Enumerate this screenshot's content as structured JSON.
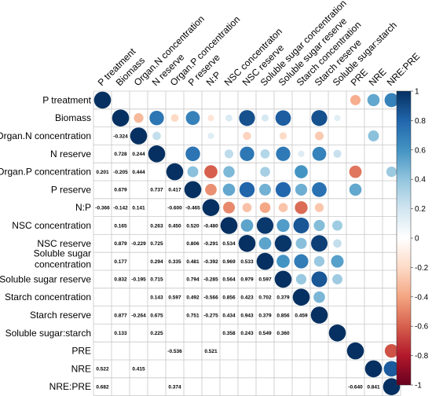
{
  "chart_data": {
    "type": "heatmap",
    "title": "",
    "variables": [
      "P treatment",
      "Biomass",
      "Organ.N concentration",
      "N reserve",
      "Organ.P concentration",
      "P reserve",
      "N:P",
      "NSC concentration",
      "NSC reserve",
      "Soluble sugar concentration",
      "Soluble sugar reserve",
      "Starch concentration",
      "Starch reserve",
      "Soluble sugar:starch",
      "PRE",
      "NRE",
      "NRE:PRE"
    ],
    "column_labels": [
      "P treatment",
      "Biomass",
      "Organ.N concentration",
      "N reserve",
      "Organ.P concentration",
      "P reserve",
      "N:P",
      "NSC concentraton",
      "NSC reserve",
      "Soluble sugar concentration",
      "Soluble sugar reserve",
      "Starch concentration",
      "Starch reserve",
      "Soluble sugar:starch",
      "PRE",
      "NRE",
      "NRE:PRE"
    ],
    "row_labels": [
      "P treatment",
      "Biomass",
      "Organ.N concentration",
      "N reserve",
      "Organ.P concentration",
      "P reserve",
      "N:P",
      "NSC concentration",
      "NSC reserve",
      [
        "Soluble sugar",
        "concentration"
      ],
      "Soluble sugar reserve",
      "Starch concentration",
      "Starch reserve",
      "Soluble sugar:starch",
      "PRE",
      "NRE",
      "NRE:PRE"
    ],
    "lower_labels": [
      [
        4,
        0,
        "0.201"
      ],
      [
        6,
        0,
        "-0.366"
      ],
      [
        15,
        0,
        "0.522"
      ],
      [
        16,
        0,
        "0.682"
      ],
      [
        2,
        1,
        "-0.324"
      ],
      [
        3,
        1,
        "0.728"
      ],
      [
        4,
        1,
        "-0.205"
      ],
      [
        5,
        1,
        "0.679"
      ],
      [
        6,
        1,
        "-0.142"
      ],
      [
        7,
        1,
        "0.165"
      ],
      [
        8,
        1,
        "0.879"
      ],
      [
        9,
        1,
        "0.177"
      ],
      [
        10,
        1,
        "0.832"
      ],
      [
        12,
        1,
        "0.877"
      ],
      [
        13,
        1,
        "0.133"
      ],
      [
        3,
        2,
        "0.244"
      ],
      [
        4,
        2,
        "0.444"
      ],
      [
        6,
        2,
        "0.141"
      ],
      [
        8,
        2,
        "-0.229"
      ],
      [
        10,
        2,
        "-0.195"
      ],
      [
        12,
        2,
        "-0.264"
      ],
      [
        15,
        2,
        "0.415"
      ],
      [
        5,
        3,
        "0.737"
      ],
      [
        7,
        3,
        "0.263"
      ],
      [
        8,
        3,
        "0.725"
      ],
      [
        9,
        3,
        "0.294"
      ],
      [
        10,
        3,
        "0.715"
      ],
      [
        11,
        3,
        "0.143"
      ],
      [
        12,
        3,
        "0.675"
      ],
      [
        13,
        3,
        "0.225"
      ],
      [
        5,
        4,
        "0.417"
      ],
      [
        6,
        4,
        "-0.600"
      ],
      [
        7,
        4,
        "0.450"
      ],
      [
        9,
        4,
        "0.335"
      ],
      [
        11,
        4,
        "0.597"
      ],
      [
        14,
        4,
        "-0.536"
      ],
      [
        16,
        4,
        "0.374"
      ],
      [
        6,
        5,
        "-0.465"
      ],
      [
        7,
        5,
        "0.520"
      ],
      [
        8,
        5,
        "0.806"
      ],
      [
        9,
        5,
        "0.481"
      ],
      [
        10,
        5,
        "0.794"
      ],
      [
        11,
        5,
        "0.492"
      ],
      [
        12,
        5,
        "0.751"
      ],
      [
        7,
        6,
        "-0.480"
      ],
      [
        8,
        6,
        "-0.291"
      ],
      [
        9,
        6,
        "-0.392"
      ],
      [
        10,
        6,
        "-0.285"
      ],
      [
        11,
        6,
        "-0.566"
      ],
      [
        12,
        6,
        "-0.275"
      ],
      [
        14,
        6,
        "0.521"
      ],
      [
        8,
        7,
        "0.534"
      ],
      [
        9,
        7,
        "0.969"
      ],
      [
        10,
        7,
        "0.564"
      ],
      [
        11,
        7,
        "0.856"
      ],
      [
        12,
        7,
        "0.434"
      ],
      [
        13,
        7,
        "0.358"
      ],
      [
        9,
        8,
        "0.533"
      ],
      [
        10,
        8,
        "0.979"
      ],
      [
        11,
        8,
        "0.423"
      ],
      [
        12,
        8,
        "0.943"
      ],
      [
        13,
        8,
        "0.243"
      ],
      [
        10,
        9,
        "0.597"
      ],
      [
        11,
        9,
        "0.702"
      ],
      [
        12,
        9,
        "0.379"
      ],
      [
        13,
        9,
        "0.549"
      ],
      [
        11,
        10,
        "0.379"
      ],
      [
        12,
        10,
        "0.856"
      ],
      [
        13,
        10,
        "0.360"
      ],
      [
        12,
        11,
        "0.459"
      ],
      [
        16,
        14,
        "-0.640"
      ],
      [
        16,
        15,
        "0.841"
      ]
    ],
    "upper_circles": [
      [
        0,
        0,
        1.0
      ],
      [
        0,
        14,
        -0.366
      ],
      [
        0,
        15,
        0.522
      ],
      [
        0,
        16,
        0.682
      ],
      [
        1,
        1,
        1.0
      ],
      [
        1,
        2,
        -0.324
      ],
      [
        1,
        3,
        0.728
      ],
      [
        1,
        4,
        -0.205
      ],
      [
        1,
        5,
        0.679
      ],
      [
        1,
        6,
        -0.142
      ],
      [
        1,
        7,
        0.165
      ],
      [
        1,
        8,
        0.879
      ],
      [
        1,
        9,
        0.177
      ],
      [
        1,
        10,
        0.832
      ],
      [
        1,
        12,
        0.877
      ],
      [
        1,
        13,
        0.133
      ],
      [
        2,
        2,
        1.0
      ],
      [
        2,
        3,
        0.244
      ],
      [
        2,
        6,
        0.141
      ],
      [
        2,
        8,
        -0.229
      ],
      [
        2,
        10,
        -0.195
      ],
      [
        2,
        12,
        -0.264
      ],
      [
        2,
        15,
        0.415
      ],
      [
        3,
        3,
        1.0
      ],
      [
        3,
        5,
        0.737
      ],
      [
        3,
        7,
        0.263
      ],
      [
        3,
        8,
        0.725
      ],
      [
        3,
        9,
        0.294
      ],
      [
        3,
        10,
        0.715
      ],
      [
        3,
        11,
        0.143
      ],
      [
        3,
        12,
        0.675
      ],
      [
        3,
        13,
        0.225
      ],
      [
        4,
        4,
        1.0
      ],
      [
        4,
        5,
        0.417
      ],
      [
        4,
        6,
        -0.6
      ],
      [
        4,
        7,
        0.45
      ],
      [
        4,
        9,
        0.335
      ],
      [
        4,
        11,
        0.597
      ],
      [
        4,
        14,
        -0.536
      ],
      [
        4,
        16,
        0.374
      ],
      [
        5,
        5,
        1.0
      ],
      [
        5,
        6,
        -0.465
      ],
      [
        5,
        7,
        0.52
      ],
      [
        5,
        8,
        0.806
      ],
      [
        5,
        9,
        0.481
      ],
      [
        5,
        10,
        0.794
      ],
      [
        5,
        11,
        0.492
      ],
      [
        5,
        12,
        0.751
      ],
      [
        5,
        14,
        0.521
      ],
      [
        6,
        6,
        1.0
      ],
      [
        6,
        7,
        -0.48
      ],
      [
        6,
        8,
        -0.291
      ],
      [
        6,
        9,
        -0.392
      ],
      [
        6,
        10,
        -0.285
      ],
      [
        6,
        11,
        -0.566
      ],
      [
        6,
        12,
        -0.275
      ],
      [
        7,
        7,
        1.0
      ],
      [
        7,
        8,
        0.534
      ],
      [
        7,
        9,
        0.969
      ],
      [
        7,
        10,
        0.564
      ],
      [
        7,
        11,
        0.856
      ],
      [
        7,
        12,
        0.434
      ],
      [
        7,
        13,
        0.358
      ],
      [
        8,
        8,
        1.0
      ],
      [
        8,
        9,
        0.533
      ],
      [
        8,
        10,
        0.979
      ],
      [
        8,
        11,
        0.423
      ],
      [
        8,
        12,
        0.943
      ],
      [
        8,
        13,
        0.243
      ],
      [
        9,
        9,
        1.0
      ],
      [
        9,
        10,
        0.597
      ],
      [
        9,
        11,
        0.702
      ],
      [
        9,
        12,
        0.379
      ],
      [
        9,
        13,
        0.549
      ],
      [
        10,
        10,
        1.0
      ],
      [
        10,
        11,
        0.379
      ],
      [
        10,
        12,
        0.856
      ],
      [
        10,
        13,
        0.36
      ],
      [
        11,
        11,
        1.0
      ],
      [
        11,
        12,
        0.459
      ],
      [
        12,
        12,
        1.0
      ],
      [
        13,
        13,
        1.0
      ],
      [
        14,
        14,
        1.0
      ],
      [
        14,
        16,
        -0.64
      ],
      [
        15,
        15,
        1.0
      ],
      [
        15,
        16,
        0.841
      ],
      [
        16,
        16,
        1.0
      ]
    ],
    "colorbar": {
      "range": [
        -1,
        1
      ],
      "ticks": [
        "1",
        "0.8",
        "0.6",
        "0.4",
        "0.2",
        "0",
        "-0.2",
        "-0.4",
        "-0.6",
        "-0.8",
        "-1"
      ],
      "colors": [
        "#67001f",
        "#b2182b",
        "#d6604d",
        "#f4a582",
        "#fddbc7",
        "#ffffff",
        "#d1e5f0",
        "#92c5de",
        "#4393c3",
        "#2166ac",
        "#053061"
      ]
    },
    "grid": true,
    "legend_position": "right"
  }
}
